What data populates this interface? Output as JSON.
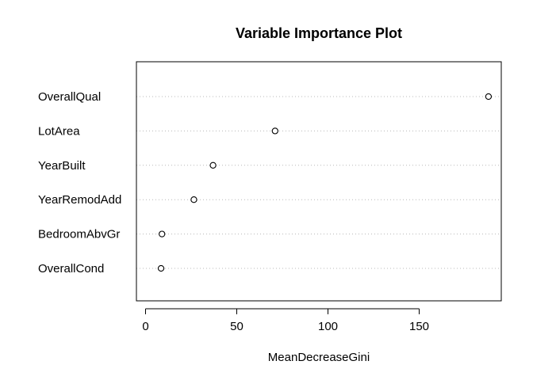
{
  "chart_data": {
    "type": "scatter",
    "title": "Variable Importance Plot",
    "xlabel": "MeanDecreaseGini",
    "ylabel": "",
    "xlim": [
      -5,
      195
    ],
    "xticks": [
      0,
      50,
      100,
      150
    ],
    "grid": "dotted horizontal guide per variable",
    "categories": [
      "OverallQual",
      "LotArea",
      "YearBuilt",
      "YearRemodAdd",
      "BedroomAbvGr",
      "OverallCond"
    ],
    "values": [
      188,
      71,
      37,
      26.5,
      9,
      8.5
    ]
  }
}
